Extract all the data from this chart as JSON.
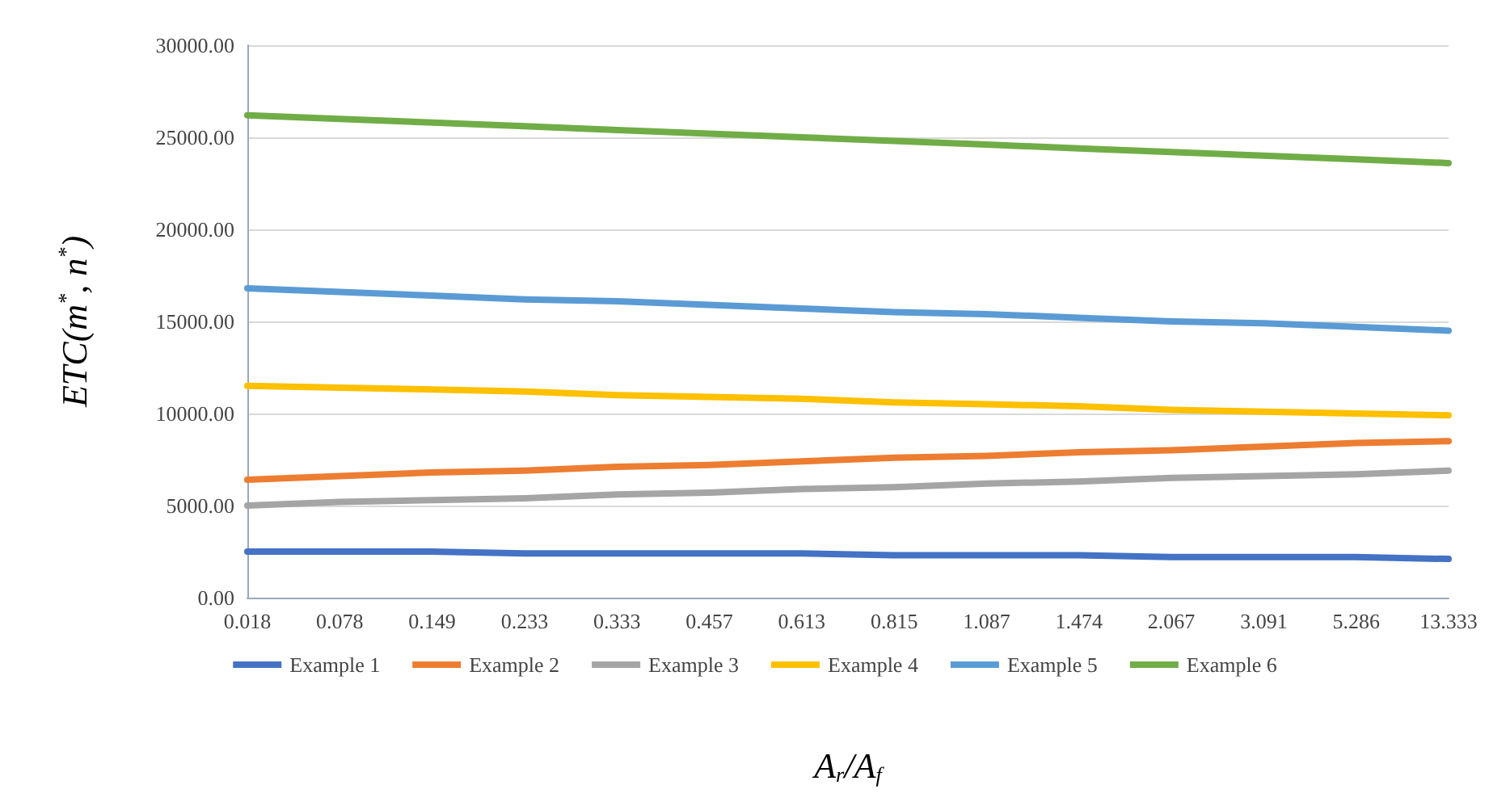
{
  "chart_data": {
    "type": "line",
    "xlabel": "A$_{r}$/A$_{f}$",
    "ylabel": "ETC(m$^{*}$, n$^{*}$)",
    "categories": [
      "0.018",
      "0.078",
      "0.149",
      "0.233",
      "0.333",
      "0.457",
      "0.613",
      "0.815",
      "1.087",
      "1.474",
      "2.067",
      "3.091",
      "5.286",
      "13.333"
    ],
    "series": [
      {
        "name": "Example 1",
        "color": "#4472c4",
        "values": [
          2500,
          2500,
          2500,
          2400,
          2400,
          2400,
          2400,
          2300,
          2300,
          2300,
          2200,
          2200,
          2200,
          2100
        ]
      },
      {
        "name": "Example 2",
        "color": "#ed7d31",
        "values": [
          6400,
          6600,
          6800,
          6900,
          7100,
          7200,
          7400,
          7600,
          7700,
          7900,
          8000,
          8200,
          8400,
          8500
        ]
      },
      {
        "name": "Example 3",
        "color": "#a5a5a5",
        "values": [
          5000,
          5200,
          5300,
          5400,
          5600,
          5700,
          5900,
          6000,
          6200,
          6300,
          6500,
          6600,
          6700,
          6900
        ]
      },
      {
        "name": "Example 4",
        "color": "#ffc000",
        "values": [
          11500,
          11400,
          11300,
          11200,
          11000,
          10900,
          10800,
          10600,
          10500,
          10400,
          10200,
          10100,
          10000,
          9900
        ]
      },
      {
        "name": "Example 5",
        "color": "#5b9bd5",
        "values": [
          16800,
          16600,
          16400,
          16200,
          16100,
          15900,
          15700,
          15500,
          15400,
          15200,
          15000,
          14900,
          14700,
          14500
        ]
      },
      {
        "name": "Example 6",
        "color": "#70ad47",
        "values": [
          26200,
          26000,
          25800,
          25600,
          25400,
          25200,
          25000,
          24800,
          24600,
          24400,
          24200,
          24000,
          23800,
          23600
        ]
      }
    ],
    "ylim": [
      0,
      30000
    ],
    "yticks": [
      {
        "value": 0,
        "label": "0.00"
      },
      {
        "value": 5000,
        "label": "5000.00"
      },
      {
        "value": 10000,
        "label": "10000.00"
      },
      {
        "value": 15000,
        "label": "15000.00"
      },
      {
        "value": 20000,
        "label": "20000.00"
      },
      {
        "value": 25000,
        "label": "25000.00"
      },
      {
        "value": 30000,
        "label": "30000.00"
      }
    ],
    "grid": "y",
    "legend": "bottom",
    "marker": "none",
    "line_style": "solid"
  }
}
